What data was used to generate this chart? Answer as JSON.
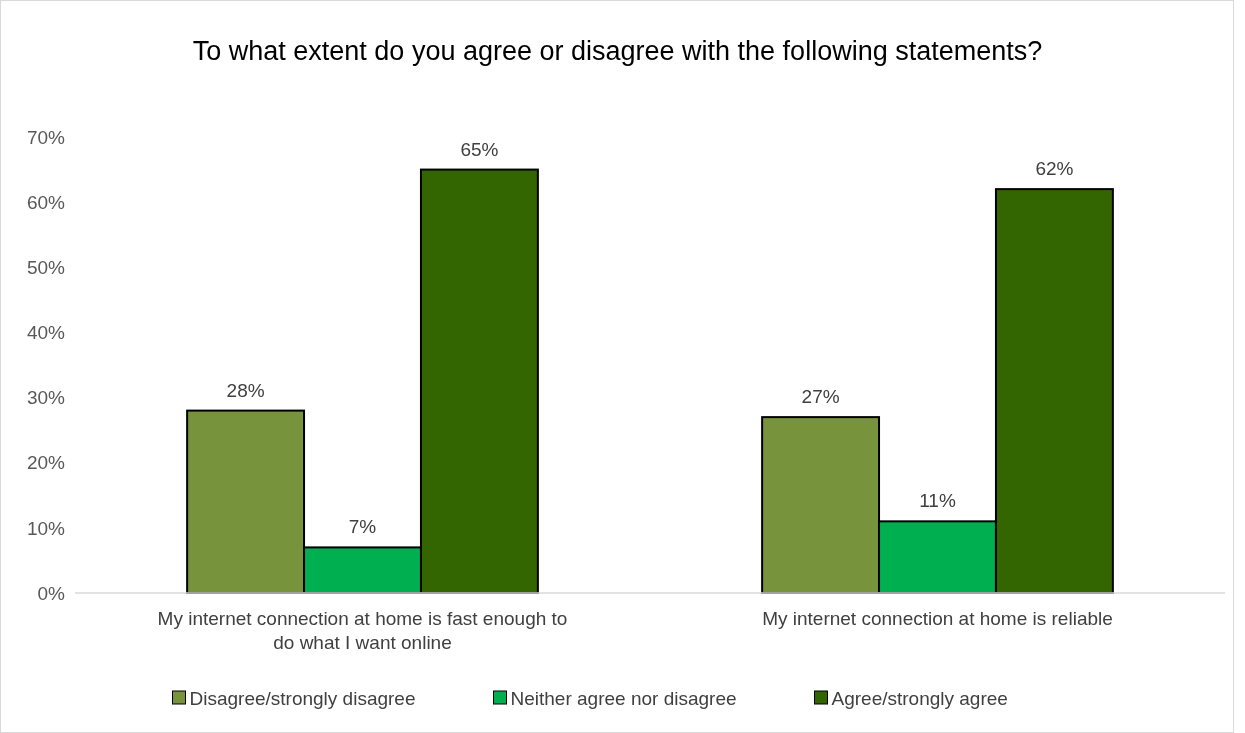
{
  "chart_data": {
    "type": "bar",
    "title": "To what extent do you agree or disagree with the following statements?",
    "categories": [
      "My internet connection at home is fast enough to do what I want online",
      "My internet connection at home is reliable"
    ],
    "series": [
      {
        "name": "Disagree/strongly disagree",
        "color": "#77933c",
        "values": [
          28,
          27
        ],
        "value_labels": [
          "28%",
          "27%"
        ]
      },
      {
        "name": "Neither agree nor disagree",
        "color": "#00b050",
        "values": [
          7,
          11
        ],
        "value_labels": [
          "7%",
          "11%"
        ]
      },
      {
        "name": "Agree/strongly agree",
        "color": "#336600",
        "values": [
          65,
          62
        ],
        "value_labels": [
          "65%",
          "62%"
        ]
      }
    ],
    "ylim": [
      0,
      70
    ],
    "yticks": [
      {
        "value": 0,
        "label": "0%"
      },
      {
        "value": 10,
        "label": "10%"
      },
      {
        "value": 20,
        "label": "20%"
      },
      {
        "value": 30,
        "label": "30%"
      },
      {
        "value": 40,
        "label": "40%"
      },
      {
        "value": 50,
        "label": "50%"
      },
      {
        "value": 60,
        "label": "60%"
      },
      {
        "value": 70,
        "label": "70%"
      }
    ],
    "legend": "bottom"
  }
}
